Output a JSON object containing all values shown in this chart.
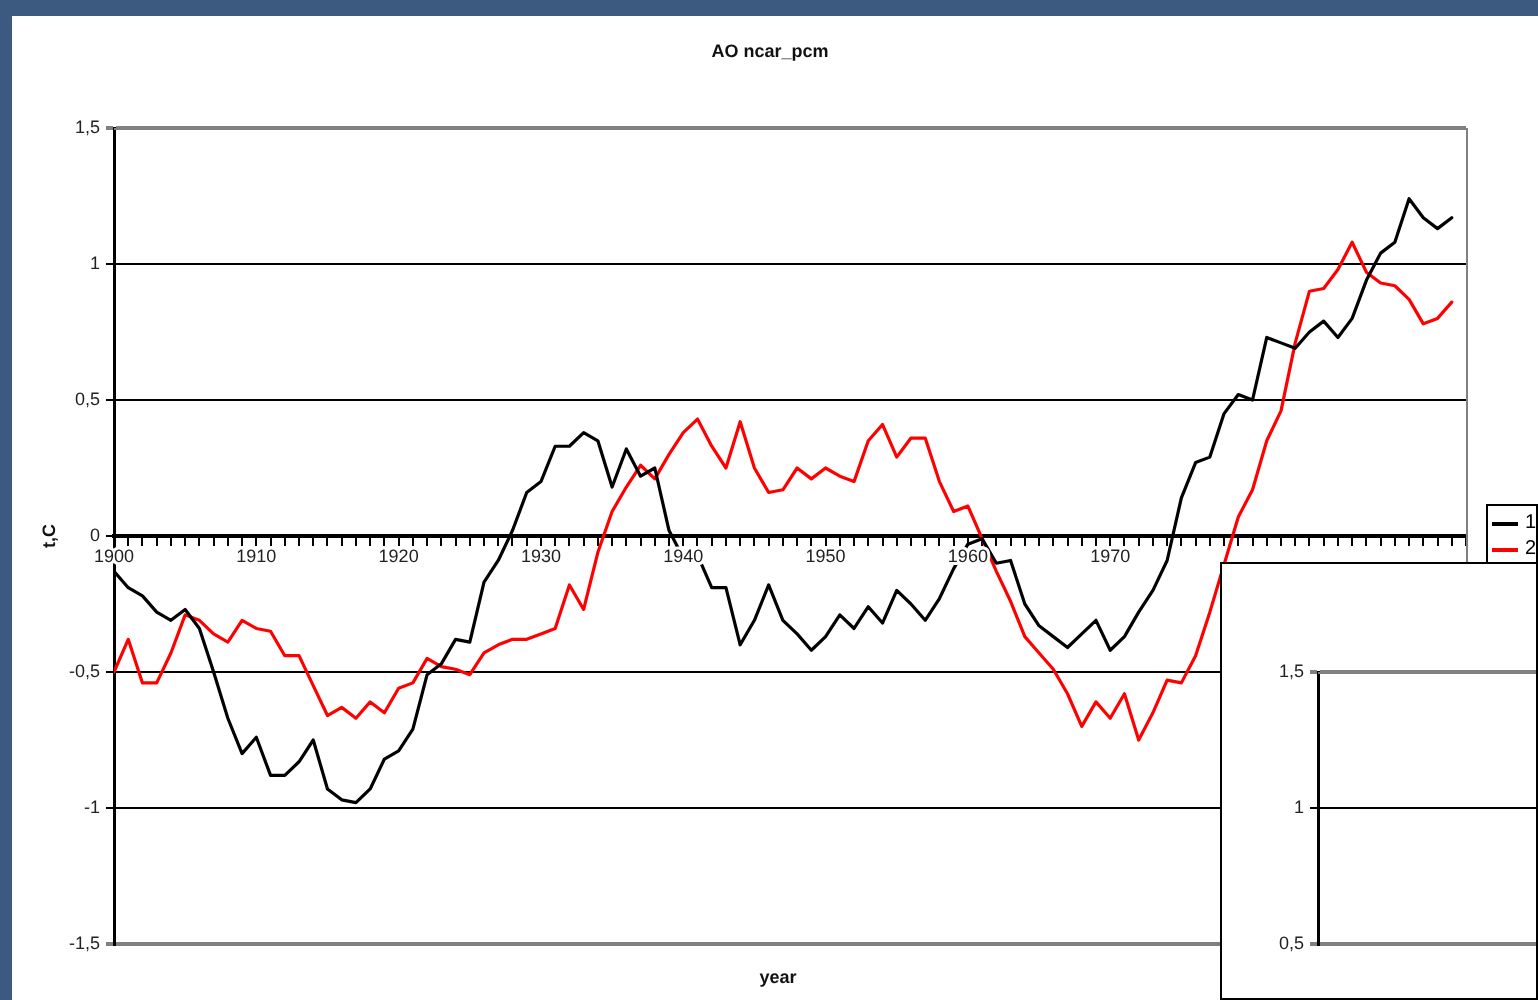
{
  "chart_data": [
    {
      "type": "line",
      "title": "AO ncar_pcm",
      "xlabel": "year",
      "ylabel": "t,C",
      "x": [
        1900,
        1901,
        1902,
        1903,
        1904,
        1905,
        1906,
        1907,
        1908,
        1909,
        1910,
        1911,
        1912,
        1913,
        1914,
        1915,
        1916,
        1917,
        1918,
        1919,
        1920,
        1921,
        1922,
        1923,
        1924,
        1925,
        1926,
        1927,
        1928,
        1929,
        1930,
        1931,
        1932,
        1933,
        1934,
        1935,
        1936,
        1937,
        1938,
        1939,
        1940,
        1941,
        1942,
        1943,
        1944,
        1945,
        1946,
        1947,
        1948,
        1949,
        1950,
        1951,
        1952,
        1953,
        1954,
        1955,
        1956,
        1957,
        1958,
        1959,
        1960,
        1961,
        1962,
        1963,
        1964,
        1965,
        1966,
        1967,
        1968,
        1969,
        1970,
        1971,
        1972,
        1973,
        1974,
        1975,
        1976,
        1977,
        1978,
        1979,
        1980,
        1981,
        1982,
        1983,
        1984,
        1985,
        1986,
        1987,
        1988,
        1989,
        1990,
        1991,
        1992,
        1993,
        1994
      ],
      "series": [
        {
          "name": "1",
          "color": "#000000",
          "values": [
            -0.13,
            -0.19,
            -0.22,
            -0.28,
            -0.31,
            -0.27,
            -0.34,
            -0.5,
            -0.67,
            -0.8,
            -0.74,
            -0.88,
            -0.88,
            -0.83,
            -0.75,
            -0.93,
            -0.97,
            -0.98,
            -0.93,
            -0.82,
            -0.79,
            -0.71,
            -0.51,
            -0.47,
            -0.38,
            -0.39,
            -0.17,
            -0.09,
            0.02,
            0.16,
            0.2,
            0.33,
            0.33,
            0.38,
            0.35,
            0.18,
            0.32,
            0.22,
            0.25,
            0.02,
            -0.08,
            -0.07,
            -0.19,
            -0.19,
            -0.4,
            -0.31,
            -0.18,
            -0.31,
            -0.36,
            -0.42,
            -0.37,
            -0.29,
            -0.34,
            -0.26,
            -0.32,
            -0.2,
            -0.25,
            -0.31,
            -0.23,
            -0.12,
            -0.03,
            -0.01,
            -0.1,
            -0.09,
            -0.25,
            -0.33,
            -0.37,
            -0.41,
            -0.36,
            -0.31,
            -0.42,
            -0.37,
            -0.28,
            -0.2,
            -0.09,
            0.14,
            0.27,
            0.29,
            0.45,
            0.52,
            0.5,
            0.73,
            0.71,
            0.69,
            0.75,
            0.79,
            0.73,
            0.8,
            0.94,
            1.04,
            1.08,
            1.24,
            1.17,
            1.13,
            1.17
          ]
        },
        {
          "name": "2",
          "color": "#ff0000",
          "values": [
            -0.5,
            -0.38,
            -0.54,
            -0.54,
            -0.43,
            -0.29,
            -0.31,
            -0.36,
            -0.39,
            -0.31,
            -0.34,
            -0.35,
            -0.44,
            -0.44,
            -0.55,
            -0.66,
            -0.63,
            -0.67,
            -0.61,
            -0.65,
            -0.56,
            -0.54,
            -0.45,
            -0.48,
            -0.49,
            -0.51,
            -0.43,
            -0.4,
            -0.38,
            -0.38,
            -0.36,
            -0.34,
            -0.18,
            -0.27,
            -0.06,
            0.09,
            0.18,
            0.26,
            0.21,
            0.3,
            0.38,
            0.43,
            0.33,
            0.25,
            0.42,
            0.25,
            0.16,
            0.17,
            0.25,
            0.21,
            0.25,
            0.22,
            0.2,
            0.35,
            0.41,
            0.29,
            0.36,
            0.36,
            0.2,
            0.09,
            0.11,
            -0.01,
            -0.13,
            -0.24,
            -0.37,
            -0.43,
            -0.49,
            -0.58,
            -0.7,
            -0.61,
            -0.67,
            -0.58,
            -0.75,
            -0.65,
            -0.53,
            -0.54,
            -0.44,
            -0.28,
            null,
            0.07,
            0.17,
            0.35,
            0.46,
            0.71,
            0.9,
            0.91,
            0.98,
            1.08,
            0.97,
            0.93,
            0.92,
            0.87,
            0.78,
            0.8,
            0.86
          ]
        }
      ],
      "xlim": [
        1900,
        1995
      ],
      "xticks": [
        1900,
        {
          "value": 1901,
          "label": null
        },
        {
          "value": 1902,
          "label": null
        },
        {
          "value": 1903,
          "label": null
        },
        {
          "value": 1904,
          "label": null
        },
        {
          "value": 1905,
          "label": null
        },
        {
          "value": 1906,
          "label": null
        },
        {
          "value": 1907,
          "label": null
        },
        {
          "value": 1908,
          "label": null
        },
        {
          "value": 1909,
          "label": null
        },
        1910,
        {
          "value": 1911,
          "label": null
        },
        {
          "value": 1912,
          "label": null
        },
        {
          "value": 1913,
          "label": null
        },
        {
          "value": 1914,
          "label": null
        },
        {
          "value": 1915,
          "label": null
        },
        {
          "value": 1916,
          "label": null
        },
        {
          "value": 1917,
          "label": null
        },
        {
          "value": 1918,
          "label": null
        },
        {
          "value": 1919,
          "label": null
        },
        1920,
        {
          "value": 1921,
          "label": null
        },
        {
          "value": 1922,
          "label": null
        },
        {
          "value": 1923,
          "label": null
        },
        {
          "value": 1924,
          "label": null
        },
        {
          "value": 1925,
          "label": null
        },
        {
          "value": 1926,
          "label": null
        },
        {
          "value": 1927,
          "label": null
        },
        {
          "value": 1928,
          "label": null
        },
        {
          "value": 1929,
          "label": null
        },
        1930,
        {
          "value": 1931,
          "label": null
        },
        {
          "value": 1932,
          "label": null
        },
        {
          "value": 1933,
          "label": null
        },
        {
          "value": 1934,
          "label": null
        },
        {
          "value": 1935,
          "label": null
        },
        {
          "value": 1936,
          "label": null
        },
        {
          "value": 1937,
          "label": null
        },
        {
          "value": 1938,
          "label": null
        },
        {
          "value": 1939,
          "label": null
        },
        1940,
        {
          "value": 1941,
          "label": null
        },
        {
          "value": 1942,
          "label": null
        },
        {
          "value": 1943,
          "label": null
        },
        {
          "value": 1944,
          "label": null
        },
        {
          "value": 1945,
          "label": null
        },
        {
          "value": 1946,
          "label": null
        },
        {
          "value": 1947,
          "label": null
        },
        {
          "value": 1948,
          "label": null
        },
        {
          "value": 1949,
          "label": null
        },
        1950,
        {
          "value": 1951,
          "label": null
        },
        {
          "value": 1952,
          "label": null
        },
        {
          "value": 1953,
          "label": null
        },
        {
          "value": 1954,
          "label": null
        },
        {
          "value": 1955,
          "label": null
        },
        {
          "value": 1956,
          "label": null
        },
        {
          "value": 1957,
          "label": null
        },
        {
          "value": 1958,
          "label": null
        },
        {
          "value": 1959,
          "label": null
        },
        1960,
        {
          "value": 1961,
          "label": null
        },
        {
          "value": 1962,
          "label": null
        },
        {
          "value": 1963,
          "label": null
        },
        {
          "value": 1964,
          "label": null
        },
        {
          "value": 1965,
          "label": null
        },
        {
          "value": 1966,
          "label": null
        },
        {
          "value": 1967,
          "label": null
        },
        {
          "value": 1968,
          "label": null
        },
        {
          "value": 1969,
          "label": null
        },
        1970,
        {
          "value": 1971,
          "label": null
        },
        {
          "value": 1972,
          "label": null
        },
        {
          "value": 1973,
          "label": null
        },
        {
          "value": 1974,
          "label": null
        },
        {
          "value": 1975,
          "label": null
        },
        {
          "value": 1976,
          "label": null
        },
        {
          "value": 1977,
          "label": null
        },
        {
          "value": 1978,
          "label": null
        },
        {
          "value": 1979,
          "label": null
        },
        {
          "value": 1980,
          "label": null
        },
        {
          "value": 1981,
          "label": null
        },
        {
          "value": 1982,
          "label": null
        },
        {
          "value": 1983,
          "label": null
        },
        {
          "value": 1984,
          "label": null
        },
        {
          "value": 1985,
          "label": null
        },
        {
          "value": 1986,
          "label": null
        },
        {
          "value": 1987,
          "label": null
        },
        {
          "value": 1988,
          "label": null
        },
        {
          "value": 1989,
          "label": null
        },
        {
          "value": 1990,
          "label": null
        },
        {
          "value": 1991,
          "label": null
        },
        {
          "value": 1992,
          "label": null
        },
        {
          "value": 1993,
          "label": null
        },
        {
          "value": 1994,
          "label": null
        },
        {
          "value": 1995,
          "label": null
        }
      ],
      "ylim": [
        -1.5,
        1.5
      ],
      "yticks": [
        {
          "value": -1.5,
          "label": "-1,5"
        },
        -1,
        {
          "value": -0.5,
          "label": "-0,5"
        },
        0,
        {
          "value": 0.5,
          "label": "0,5"
        },
        1,
        {
          "value": 1.5,
          "label": "1,5"
        }
      ],
      "grid": "y",
      "legend": "right"
    },
    {
      "type": "line",
      "categories": [
        null
      ],
      "values": [
        null
      ],
      "ylim": [
        0.5,
        1.5
      ],
      "yticks": [
        {
          "value": 0.5,
          "label": "0,5"
        },
        1,
        {
          "value": 1.5,
          "label": "1,5"
        }
      ],
      "grid": "y",
      "tick_labels": "y"
    }
  ]
}
